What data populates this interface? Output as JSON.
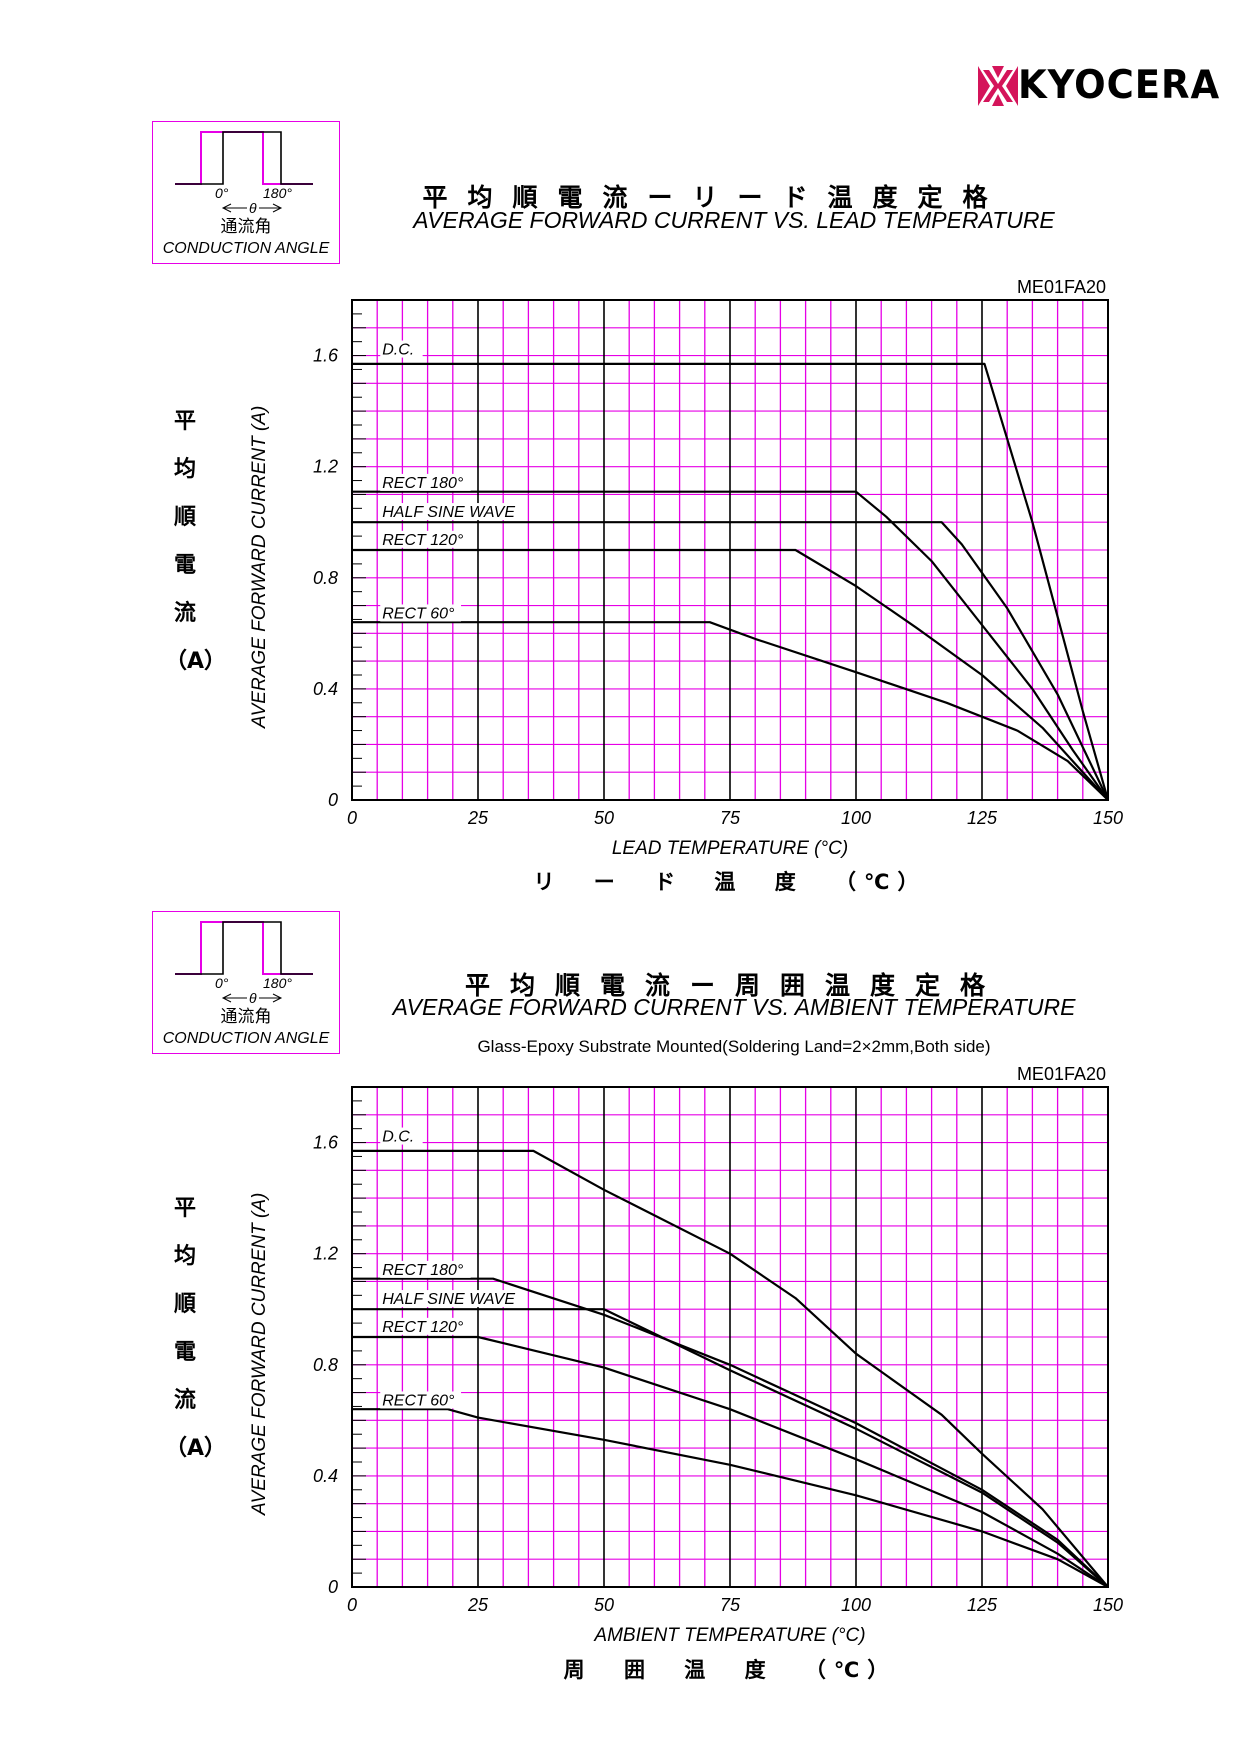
{
  "brand": {
    "name": "KYOCERA",
    "color": "#d4145a"
  },
  "conduction_box": {
    "angle_start": "0°",
    "angle_end": "180°",
    "theta": "θ",
    "jp_label": "通流角",
    "en_label": "CONDUCTION ANGLE"
  },
  "charts": [
    {
      "title_jp": "平均順電流ーリード温度定格",
      "title_en": "AVERAGE FORWARD CURRENT VS. LEAD TEMPERATURE",
      "subtitle": "",
      "code": "ME01FA20",
      "ylabel_en": "AVERAGE FORWARD CURRENT (A)",
      "ylabel_jp": [
        "平",
        "均",
        "順",
        "電",
        "流",
        "（A）"
      ],
      "xlabel_en": "LEAD TEMPERATURE (°C)",
      "xlabel_jp": "リ ー ド 温 度 （℃）"
    },
    {
      "title_jp": "平均順電流ー周囲温度定格",
      "title_en": "AVERAGE FORWARD CURRENT VS. AMBIENT TEMPERATURE",
      "subtitle": "Glass-Epoxy Substrate Mounted(Soldering Land=2×2mm,Both side)",
      "code": "ME01FA20",
      "ylabel_en": "AVERAGE FORWARD CURRENT (A)",
      "ylabel_jp": [
        "平",
        "均",
        "順",
        "電",
        "流",
        "（A）"
      ],
      "xlabel_en": "AMBIENT TEMPERATURE (°C)",
      "xlabel_jp": "周 囲 温 度 （℃）"
    }
  ],
  "chart_data": [
    {
      "type": "line",
      "title": "AVERAGE FORWARD CURRENT VS. LEAD TEMPERATURE",
      "xlabel": "LEAD TEMPERATURE (°C)",
      "ylabel": "AVERAGE FORWARD CURRENT (A)",
      "xlim": [
        0,
        150
      ],
      "ylim": [
        0,
        1.8
      ],
      "xticks": [
        0,
        25,
        50,
        75,
        100,
        125,
        150
      ],
      "xtick_labels": [
        "0",
        "25",
        "50",
        "75",
        "100",
        "125",
        "150"
      ],
      "yticks": [
        0,
        0.4,
        0.8,
        1.2,
        1.6
      ],
      "ytick_labels": [
        "0",
        "0.4",
        "0.8",
        "1.2",
        "1.6"
      ],
      "grid": true,
      "series": [
        {
          "name": "D.C.",
          "label_at": [
            6,
            1.6
          ],
          "points": [
            [
              0,
              1.57
            ],
            [
              125.5,
              1.57
            ],
            [
              130,
              1.3
            ],
            [
              135,
              1.0
            ],
            [
              140,
              0.66
            ],
            [
              145,
              0.32
            ],
            [
              150,
              0
            ]
          ]
        },
        {
          "name": "RECT 180°",
          "label_at": [
            6,
            1.12
          ],
          "points": [
            [
              0,
              1.11
            ],
            [
              100,
              1.11
            ],
            [
              106,
              1.02
            ],
            [
              115,
              0.86
            ],
            [
              125,
              0.63
            ],
            [
              135,
              0.4
            ],
            [
              143,
              0.18
            ],
            [
              150,
              0
            ]
          ]
        },
        {
          "name": "HALF SINE WAVE",
          "label_at": [
            6,
            1.015
          ],
          "points": [
            [
              0,
              1.0
            ],
            [
              117,
              1.0
            ],
            [
              121,
              0.92
            ],
            [
              130,
              0.69
            ],
            [
              140,
              0.38
            ],
            [
              150,
              0
            ]
          ]
        },
        {
          "name": "RECT 120°",
          "label_at": [
            6,
            0.915
          ],
          "points": [
            [
              0,
              0.9
            ],
            [
              88,
              0.9
            ],
            [
              100,
              0.77
            ],
            [
              112,
              0.62
            ],
            [
              125,
              0.45
            ],
            [
              137,
              0.26
            ],
            [
              150,
              0
            ]
          ]
        },
        {
          "name": "RECT 60°",
          "label_at": [
            6,
            0.65
          ],
          "points": [
            [
              0,
              0.64
            ],
            [
              71,
              0.64
            ],
            [
              80,
              0.58
            ],
            [
              100,
              0.46
            ],
            [
              118,
              0.35
            ],
            [
              132,
              0.25
            ],
            [
              142,
              0.14
            ],
            [
              150,
              0
            ]
          ]
        }
      ]
    },
    {
      "type": "line",
      "title": "AVERAGE FORWARD CURRENT VS. AMBIENT TEMPERATURE",
      "xlabel": "AMBIENT TEMPERATURE (°C)",
      "ylabel": "AVERAGE FORWARD CURRENT (A)",
      "xlim": [
        0,
        150
      ],
      "ylim": [
        0,
        1.8
      ],
      "xticks": [
        0,
        25,
        50,
        75,
        100,
        125,
        150
      ],
      "xtick_labels": [
        "0",
        "25",
        "50",
        "75",
        "100",
        "125",
        "150"
      ],
      "yticks": [
        0,
        0.4,
        0.8,
        1.2,
        1.6
      ],
      "ytick_labels": [
        "0",
        "0.4",
        "0.8",
        "1.2",
        "1.6"
      ],
      "grid": true,
      "series": [
        {
          "name": "D.C.",
          "label_at": [
            6,
            1.6
          ],
          "points": [
            [
              0,
              1.57
            ],
            [
              36,
              1.57
            ],
            [
              50,
              1.43
            ],
            [
              75,
              1.2
            ],
            [
              88,
              1.04
            ],
            [
              100,
              0.84
            ],
            [
              117,
              0.62
            ],
            [
              125,
              0.48
            ],
            [
              137,
              0.28
            ],
            [
              150,
              0
            ]
          ]
        },
        {
          "name": "RECT 180°",
          "label_at": [
            6,
            1.12
          ],
          "points": [
            [
              0,
              1.11
            ],
            [
              28,
              1.11
            ],
            [
              50,
              0.98
            ],
            [
              75,
              0.8
            ],
            [
              100,
              0.59
            ],
            [
              125,
              0.35
            ],
            [
              140,
              0.17
            ],
            [
              150,
              0
            ]
          ]
        },
        {
          "name": "HALF SINE WAVE",
          "label_at": [
            6,
            1.015
          ],
          "points": [
            [
              0,
              1.0
            ],
            [
              50,
              1.0
            ],
            [
              75,
              0.78
            ],
            [
              100,
              0.57
            ],
            [
              125,
              0.34
            ],
            [
              140,
              0.16
            ],
            [
              150,
              0
            ]
          ]
        },
        {
          "name": "RECT 120°",
          "label_at": [
            6,
            0.915
          ],
          "points": [
            [
              0,
              0.9
            ],
            [
              25,
              0.9
            ],
            [
              50,
              0.79
            ],
            [
              75,
              0.64
            ],
            [
              100,
              0.46
            ],
            [
              125,
              0.27
            ],
            [
              140,
              0.12
            ],
            [
              150,
              0
            ]
          ]
        },
        {
          "name": "RECT 60°",
          "label_at": [
            6,
            0.65
          ],
          "points": [
            [
              0,
              0.64
            ],
            [
              19,
              0.64
            ],
            [
              25,
              0.61
            ],
            [
              50,
              0.53
            ],
            [
              75,
              0.44
            ],
            [
              100,
              0.33
            ],
            [
              125,
              0.2
            ],
            [
              140,
              0.1
            ],
            [
              150,
              0
            ]
          ]
        }
      ]
    }
  ]
}
